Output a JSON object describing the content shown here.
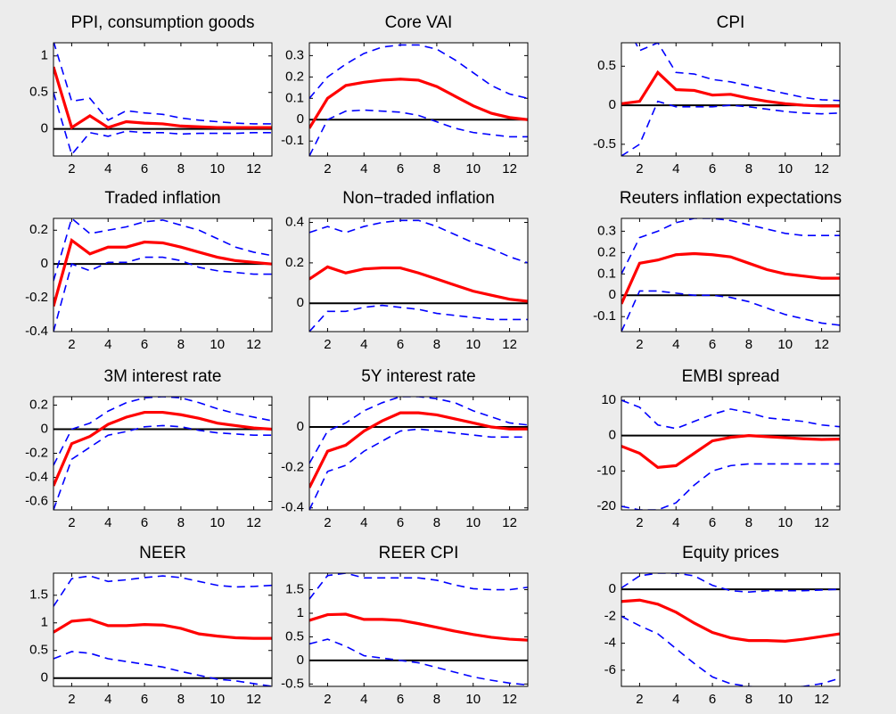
{
  "chart_data": [
    {
      "type": "line",
      "title": "PPI, consumption goods",
      "x": [
        1,
        2,
        3,
        4,
        5,
        6,
        7,
        8,
        9,
        10,
        11,
        12,
        13
      ],
      "xlim": [
        1,
        13
      ],
      "xticks": [
        2,
        4,
        6,
        8,
        10,
        12
      ],
      "ylim": [
        -0.37,
        1.18
      ],
      "yticks": [
        0,
        0.5,
        1
      ],
      "series": [
        {
          "color": "#ff0000",
          "linestyle": "solid",
          "values": [
            0.85,
            0.02,
            0.18,
            0.02,
            0.1,
            0.08,
            0.07,
            0.04,
            0.03,
            0.02,
            0.02,
            0.02,
            0.02
          ]
        },
        {
          "color": "#0000ff",
          "linestyle": "dashed",
          "values": [
            1.2,
            0.38,
            0.42,
            0.12,
            0.25,
            0.22,
            0.2,
            0.15,
            0.12,
            0.1,
            0.08,
            0.07,
            0.07
          ]
        },
        {
          "color": "#0000ff",
          "linestyle": "dashed",
          "values": [
            0.5,
            -0.35,
            -0.05,
            -0.1,
            -0.03,
            -0.05,
            -0.05,
            -0.07,
            -0.06,
            -0.06,
            -0.06,
            -0.05,
            -0.05
          ]
        }
      ]
    },
    {
      "type": "line",
      "title": "Core VAI",
      "x": [
        1,
        2,
        3,
        4,
        5,
        6,
        7,
        8,
        9,
        10,
        11,
        12,
        13
      ],
      "xlim": [
        1,
        13
      ],
      "xticks": [
        2,
        4,
        6,
        8,
        10,
        12
      ],
      "ylim": [
        -0.17,
        0.36
      ],
      "yticks": [
        -0.1,
        0,
        0.1,
        0.2,
        0.3
      ],
      "series": [
        {
          "color": "#ff0000",
          "linestyle": "solid",
          "values": [
            -0.04,
            0.1,
            0.16,
            0.175,
            0.185,
            0.19,
            0.185,
            0.155,
            0.11,
            0.065,
            0.03,
            0.01,
            0
          ]
        },
        {
          "color": "#0000ff",
          "linestyle": "dashed",
          "values": [
            0.1,
            0.2,
            0.26,
            0.31,
            0.34,
            0.35,
            0.35,
            0.33,
            0.28,
            0.22,
            0.16,
            0.12,
            0.1
          ]
        },
        {
          "color": "#0000ff",
          "linestyle": "dashed",
          "values": [
            -0.17,
            0,
            0.04,
            0.045,
            0.04,
            0.035,
            0.02,
            -0.01,
            -0.04,
            -0.06,
            -0.07,
            -0.08,
            -0.08
          ]
        }
      ]
    },
    {
      "type": "line",
      "title": "CPI",
      "x": [
        1,
        2,
        3,
        4,
        5,
        6,
        7,
        8,
        9,
        10,
        11,
        12,
        13
      ],
      "xlim": [
        1,
        13
      ],
      "xticks": [
        2,
        4,
        6,
        8,
        10,
        12
      ],
      "ylim": [
        -0.65,
        0.8
      ],
      "yticks": [
        -0.5,
        0,
        0.5
      ],
      "series": [
        {
          "color": "#ff0000",
          "linestyle": "solid",
          "values": [
            0.02,
            0.05,
            0.42,
            0.2,
            0.19,
            0.13,
            0.14,
            0.09,
            0.05,
            0.02,
            0,
            -0.01,
            -0.01
          ]
        },
        {
          "color": "#0000ff",
          "linestyle": "dashed",
          "values": [
            1.15,
            0.7,
            0.8,
            0.42,
            0.4,
            0.33,
            0.3,
            0.25,
            0.2,
            0.15,
            0.1,
            0.07,
            0.06
          ]
        },
        {
          "color": "#0000ff",
          "linestyle": "dashed",
          "values": [
            -0.65,
            -0.5,
            0.05,
            -0.02,
            -0.02,
            -0.02,
            0,
            -0.02,
            -0.05,
            -0.08,
            -0.1,
            -0.11,
            -0.1
          ]
        }
      ]
    },
    {
      "type": "line",
      "title": "Traded inflation",
      "x": [
        1,
        2,
        3,
        4,
        5,
        6,
        7,
        8,
        9,
        10,
        11,
        12,
        13
      ],
      "xlim": [
        1,
        13
      ],
      "xticks": [
        2,
        4,
        6,
        8,
        10,
        12
      ],
      "ylim": [
        -0.4,
        0.27
      ],
      "yticks": [
        -0.4,
        -0.2,
        0,
        0.2
      ],
      "series": [
        {
          "color": "#ff0000",
          "linestyle": "solid",
          "values": [
            -0.25,
            0.14,
            0.06,
            0.1,
            0.1,
            0.13,
            0.125,
            0.1,
            0.07,
            0.04,
            0.02,
            0.01,
            0
          ]
        },
        {
          "color": "#0000ff",
          "linestyle": "dashed",
          "values": [
            -0.1,
            0.27,
            0.18,
            0.2,
            0.22,
            0.25,
            0.26,
            0.23,
            0.2,
            0.15,
            0.1,
            0.07,
            0.05
          ]
        },
        {
          "color": "#0000ff",
          "linestyle": "dashed",
          "values": [
            -0.4,
            0,
            -0.04,
            0.01,
            0.01,
            0.04,
            0.04,
            0.02,
            -0.02,
            -0.04,
            -0.05,
            -0.06,
            -0.06
          ]
        }
      ]
    },
    {
      "type": "line",
      "title": "Non−traded inflation",
      "x": [
        1,
        2,
        3,
        4,
        5,
        6,
        7,
        8,
        9,
        10,
        11,
        12,
        13
      ],
      "xlim": [
        1,
        13
      ],
      "xticks": [
        2,
        4,
        6,
        8,
        10,
        12
      ],
      "ylim": [
        -0.14,
        0.42
      ],
      "yticks": [
        0,
        0.2,
        0.4
      ],
      "series": [
        {
          "color": "#ff0000",
          "linestyle": "solid",
          "values": [
            0.12,
            0.18,
            0.15,
            0.17,
            0.175,
            0.175,
            0.15,
            0.12,
            0.09,
            0.06,
            0.04,
            0.02,
            0.01
          ]
        },
        {
          "color": "#0000ff",
          "linestyle": "dashed",
          "values": [
            0.35,
            0.38,
            0.35,
            0.38,
            0.4,
            0.41,
            0.41,
            0.38,
            0.34,
            0.3,
            0.27,
            0.23,
            0.2
          ]
        },
        {
          "color": "#0000ff",
          "linestyle": "dashed",
          "values": [
            -0.14,
            -0.04,
            -0.04,
            -0.02,
            -0.01,
            -0.02,
            -0.03,
            -0.05,
            -0.06,
            -0.07,
            -0.08,
            -0.08,
            -0.08
          ]
        }
      ]
    },
    {
      "type": "line",
      "title": "Reuters inflation expectations",
      "x": [
        1,
        2,
        3,
        4,
        5,
        6,
        7,
        8,
        9,
        10,
        11,
        12,
        13
      ],
      "xlim": [
        1,
        13
      ],
      "xticks": [
        2,
        4,
        6,
        8,
        10,
        12
      ],
      "ylim": [
        -0.17,
        0.36
      ],
      "yticks": [
        -0.1,
        0,
        0.1,
        0.2,
        0.3
      ],
      "series": [
        {
          "color": "#ff0000",
          "linestyle": "solid",
          "values": [
            -0.04,
            0.15,
            0.165,
            0.19,
            0.195,
            0.19,
            0.18,
            0.15,
            0.12,
            0.1,
            0.09,
            0.08,
            0.08
          ]
        },
        {
          "color": "#0000ff",
          "linestyle": "dashed",
          "values": [
            0.1,
            0.27,
            0.3,
            0.34,
            0.36,
            0.36,
            0.35,
            0.33,
            0.31,
            0.29,
            0.28,
            0.28,
            0.28
          ]
        },
        {
          "color": "#0000ff",
          "linestyle": "dashed",
          "values": [
            -0.17,
            0.02,
            0.02,
            0.01,
            0,
            0,
            -0.01,
            -0.03,
            -0.06,
            -0.09,
            -0.11,
            -0.13,
            -0.14
          ]
        }
      ]
    },
    {
      "type": "line",
      "title": "3M interest rate",
      "x": [
        1,
        2,
        3,
        4,
        5,
        6,
        7,
        8,
        9,
        10,
        11,
        12,
        13
      ],
      "xlim": [
        1,
        13
      ],
      "xticks": [
        2,
        4,
        6,
        8,
        10,
        12
      ],
      "ylim": [
        -0.67,
        0.27
      ],
      "yticks": [
        -0.6,
        -0.4,
        -0.2,
        0,
        0.2
      ],
      "series": [
        {
          "color": "#ff0000",
          "linestyle": "solid",
          "values": [
            -0.47,
            -0.12,
            -0.06,
            0.04,
            0.1,
            0.14,
            0.14,
            0.12,
            0.09,
            0.05,
            0.03,
            0.01,
            0
          ]
        },
        {
          "color": "#0000ff",
          "linestyle": "dashed",
          "values": [
            -0.3,
            0,
            0.05,
            0.15,
            0.22,
            0.26,
            0.27,
            0.26,
            0.22,
            0.17,
            0.13,
            0.1,
            0.07
          ]
        },
        {
          "color": "#0000ff",
          "linestyle": "dashed",
          "values": [
            -0.67,
            -0.25,
            -0.15,
            -0.05,
            -0.02,
            0.02,
            0.03,
            0.02,
            -0.01,
            -0.03,
            -0.04,
            -0.05,
            -0.05
          ]
        }
      ]
    },
    {
      "type": "line",
      "title": "5Y interest rate",
      "x": [
        1,
        2,
        3,
        4,
        5,
        6,
        7,
        8,
        9,
        10,
        11,
        12,
        13
      ],
      "xlim": [
        1,
        13
      ],
      "xticks": [
        2,
        4,
        6,
        8,
        10,
        12
      ],
      "ylim": [
        -0.41,
        0.15
      ],
      "yticks": [
        -0.4,
        -0.2,
        0
      ],
      "series": [
        {
          "color": "#ff0000",
          "linestyle": "solid",
          "values": [
            -0.3,
            -0.12,
            -0.09,
            -0.02,
            0.03,
            0.07,
            0.07,
            0.06,
            0.04,
            0.02,
            0,
            -0.01,
            -0.01
          ]
        },
        {
          "color": "#0000ff",
          "linestyle": "dashed",
          "values": [
            -0.18,
            -0.02,
            0.02,
            0.08,
            0.12,
            0.15,
            0.15,
            0.14,
            0.12,
            0.08,
            0.05,
            0.02,
            0.01
          ]
        },
        {
          "color": "#0000ff",
          "linestyle": "dashed",
          "values": [
            -0.41,
            -0.22,
            -0.19,
            -0.12,
            -0.07,
            -0.02,
            -0.01,
            -0.02,
            -0.03,
            -0.04,
            -0.05,
            -0.05,
            -0.05
          ]
        }
      ]
    },
    {
      "type": "line",
      "title": "EMBI spread",
      "x": [
        1,
        2,
        3,
        4,
        5,
        6,
        7,
        8,
        9,
        10,
        11,
        12,
        13
      ],
      "xlim": [
        1,
        13
      ],
      "xticks": [
        2,
        4,
        6,
        8,
        10,
        12
      ],
      "ylim": [
        -21,
        11
      ],
      "yticks": [
        -20,
        -10,
        0,
        10
      ],
      "series": [
        {
          "color": "#ff0000",
          "linestyle": "solid",
          "values": [
            -3,
            -5,
            -9,
            -8.5,
            -5,
            -1.5,
            -0.5,
            0,
            -0.3,
            -0.6,
            -0.9,
            -1.1,
            -1
          ]
        },
        {
          "color": "#0000ff",
          "linestyle": "dashed",
          "values": [
            10,
            8,
            3,
            2,
            4,
            6,
            7.5,
            6.5,
            5,
            4.5,
            4,
            3,
            2.5
          ]
        },
        {
          "color": "#0000ff",
          "linestyle": "dashed",
          "values": [
            -20,
            -21,
            -21,
            -19,
            -14,
            -10,
            -8.5,
            -8,
            -8,
            -8,
            -8,
            -8,
            -8
          ]
        }
      ]
    },
    {
      "type": "line",
      "title": "NEER",
      "x": [
        1,
        2,
        3,
        4,
        5,
        6,
        7,
        8,
        9,
        10,
        11,
        12,
        13
      ],
      "xlim": [
        1,
        13
      ],
      "xticks": [
        2,
        4,
        6,
        8,
        10,
        12
      ],
      "ylim": [
        -0.15,
        1.9
      ],
      "yticks": [
        0,
        0.5,
        1,
        1.5
      ],
      "series": [
        {
          "color": "#ff0000",
          "linestyle": "solid",
          "values": [
            0.83,
            1.03,
            1.06,
            0.95,
            0.95,
            0.97,
            0.96,
            0.9,
            0.8,
            0.76,
            0.73,
            0.72,
            0.72
          ]
        },
        {
          "color": "#0000ff",
          "linestyle": "dashed",
          "values": [
            1.3,
            1.8,
            1.85,
            1.75,
            1.78,
            1.82,
            1.85,
            1.82,
            1.75,
            1.68,
            1.65,
            1.66,
            1.68
          ]
        },
        {
          "color": "#0000ff",
          "linestyle": "dashed",
          "values": [
            0.35,
            0.48,
            0.45,
            0.35,
            0.3,
            0.25,
            0.2,
            0.12,
            0.05,
            -0.02,
            -0.05,
            -0.1,
            -0.15
          ]
        }
      ]
    },
    {
      "type": "line",
      "title": "REER CPI",
      "x": [
        1,
        2,
        3,
        4,
        5,
        6,
        7,
        8,
        9,
        10,
        11,
        12,
        13
      ],
      "xlim": [
        1,
        13
      ],
      "xticks": [
        2,
        4,
        6,
        8,
        10,
        12
      ],
      "ylim": [
        -0.55,
        1.85
      ],
      "yticks": [
        -0.5,
        0,
        0.5,
        1,
        1.5
      ],
      "series": [
        {
          "color": "#ff0000",
          "linestyle": "solid",
          "values": [
            0.85,
            0.97,
            0.98,
            0.87,
            0.87,
            0.85,
            0.78,
            0.7,
            0.62,
            0.55,
            0.49,
            0.45,
            0.43
          ]
        },
        {
          "color": "#0000ff",
          "linestyle": "dashed",
          "values": [
            1.3,
            1.8,
            1.85,
            1.75,
            1.75,
            1.75,
            1.75,
            1.7,
            1.6,
            1.52,
            1.5,
            1.5,
            1.55
          ]
        },
        {
          "color": "#0000ff",
          "linestyle": "dashed",
          "values": [
            0.35,
            0.45,
            0.3,
            0.1,
            0.05,
            0,
            -0.05,
            -0.15,
            -0.25,
            -0.35,
            -0.42,
            -0.48,
            -0.52
          ]
        }
      ]
    },
    {
      "type": "line",
      "title": "Equity prices",
      "x": [
        1,
        2,
        3,
        4,
        5,
        6,
        7,
        8,
        9,
        10,
        11,
        12,
        13
      ],
      "xlim": [
        1,
        13
      ],
      "xticks": [
        2,
        4,
        6,
        8,
        10,
        12
      ],
      "ylim": [
        -7.2,
        1.2
      ],
      "yticks": [
        -6,
        -4,
        -2,
        0
      ],
      "series": [
        {
          "color": "#ff0000",
          "linestyle": "solid",
          "values": [
            -0.9,
            -0.8,
            -1.1,
            -1.7,
            -2.5,
            -3.2,
            -3.6,
            -3.8,
            -3.8,
            -3.85,
            -3.7,
            -3.5,
            -3.3
          ]
        },
        {
          "color": "#0000ff",
          "linestyle": "dashed",
          "values": [
            0.1,
            1,
            1.2,
            1.2,
            1,
            0.3,
            -0.1,
            -0.2,
            -0.1,
            -0.1,
            -0.1,
            -0.05,
            0
          ]
        },
        {
          "color": "#0000ff",
          "linestyle": "dashed",
          "values": [
            -2,
            -2.7,
            -3.3,
            -4.4,
            -5.5,
            -6.5,
            -7,
            -7.2,
            -7.3,
            -7.3,
            -7.2,
            -7,
            -6.6
          ]
        }
      ]
    }
  ]
}
